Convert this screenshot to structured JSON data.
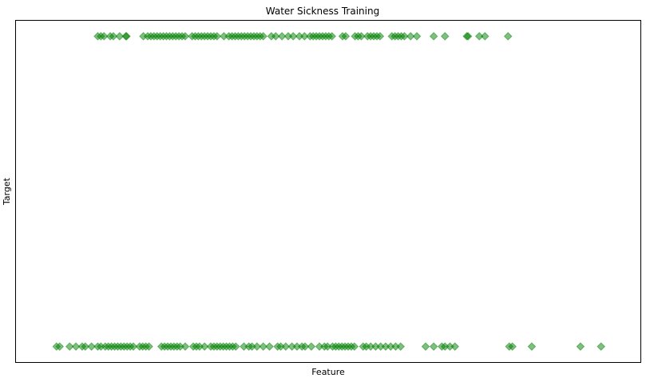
{
  "chart_data": {
    "type": "scatter",
    "title": "Water Sickness Training",
    "xlabel": "Feature",
    "ylabel": "Target",
    "xticks": [],
    "yticks": [],
    "xlim": [
      0,
      100
    ],
    "ylim": [
      -0.05,
      1.05
    ],
    "grid": false,
    "marker": "diamond",
    "color": "#008000",
    "alpha": 0.5,
    "series": [
      {
        "points": [
          {
            "x": 13.1,
            "y": 1
          },
          {
            "x": 13.6,
            "y": 1
          },
          {
            "x": 14.1,
            "y": 1
          },
          {
            "x": 15.1,
            "y": 1
          },
          {
            "x": 15.6,
            "y": 1
          },
          {
            "x": 16.6,
            "y": 1
          },
          {
            "x": 17.6,
            "y": 1
          },
          {
            "x": 17.7,
            "y": 1
          },
          {
            "x": 20.4,
            "y": 1
          },
          {
            "x": 21.1,
            "y": 1
          },
          {
            "x": 21.6,
            "y": 1
          },
          {
            "x": 22.1,
            "y": 1
          },
          {
            "x": 22.6,
            "y": 1
          },
          {
            "x": 23.1,
            "y": 1
          },
          {
            "x": 23.6,
            "y": 1
          },
          {
            "x": 24.1,
            "y": 1
          },
          {
            "x": 24.6,
            "y": 1
          },
          {
            "x": 25.1,
            "y": 1
          },
          {
            "x": 25.6,
            "y": 1
          },
          {
            "x": 26.1,
            "y": 1
          },
          {
            "x": 26.6,
            "y": 1
          },
          {
            "x": 27.1,
            "y": 1
          },
          {
            "x": 28.2,
            "y": 1
          },
          {
            "x": 28.7,
            "y": 1
          },
          {
            "x": 29.2,
            "y": 1
          },
          {
            "x": 29.7,
            "y": 1
          },
          {
            "x": 30.2,
            "y": 1
          },
          {
            "x": 30.7,
            "y": 1
          },
          {
            "x": 31.2,
            "y": 1
          },
          {
            "x": 31.7,
            "y": 1
          },
          {
            "x": 32.2,
            "y": 1
          },
          {
            "x": 33.3,
            "y": 1
          },
          {
            "x": 34.1,
            "y": 1
          },
          {
            "x": 34.6,
            "y": 1
          },
          {
            "x": 35.1,
            "y": 1
          },
          {
            "x": 35.6,
            "y": 1
          },
          {
            "x": 36.1,
            "y": 1
          },
          {
            "x": 36.6,
            "y": 1
          },
          {
            "x": 37.1,
            "y": 1
          },
          {
            "x": 37.6,
            "y": 1
          },
          {
            "x": 38.1,
            "y": 1
          },
          {
            "x": 38.6,
            "y": 1
          },
          {
            "x": 39.1,
            "y": 1
          },
          {
            "x": 39.6,
            "y": 1
          },
          {
            "x": 40.9,
            "y": 1
          },
          {
            "x": 41.6,
            "y": 1
          },
          {
            "x": 42.6,
            "y": 1
          },
          {
            "x": 43.6,
            "y": 1
          },
          {
            "x": 44.4,
            "y": 1
          },
          {
            "x": 45.4,
            "y": 1
          },
          {
            "x": 46.2,
            "y": 1
          },
          {
            "x": 47.1,
            "y": 1
          },
          {
            "x": 47.6,
            "y": 1
          },
          {
            "x": 48.1,
            "y": 1
          },
          {
            "x": 48.6,
            "y": 1
          },
          {
            "x": 49.1,
            "y": 1
          },
          {
            "x": 49.6,
            "y": 1
          },
          {
            "x": 50.1,
            "y": 1
          },
          {
            "x": 50.6,
            "y": 1
          },
          {
            "x": 52.3,
            "y": 1
          },
          {
            "x": 52.8,
            "y": 1
          },
          {
            "x": 54.3,
            "y": 1
          },
          {
            "x": 54.8,
            "y": 1
          },
          {
            "x": 55.3,
            "y": 1
          },
          {
            "x": 56.3,
            "y": 1
          },
          {
            "x": 56.8,
            "y": 1
          },
          {
            "x": 57.3,
            "y": 1
          },
          {
            "x": 57.8,
            "y": 1
          },
          {
            "x": 58.3,
            "y": 1
          },
          {
            "x": 60.2,
            "y": 1
          },
          {
            "x": 60.7,
            "y": 1
          },
          {
            "x": 61.2,
            "y": 1
          },
          {
            "x": 61.7,
            "y": 1
          },
          {
            "x": 62.2,
            "y": 1
          },
          {
            "x": 63.2,
            "y": 1
          },
          {
            "x": 64.2,
            "y": 1
          },
          {
            "x": 66.9,
            "y": 1
          },
          {
            "x": 68.7,
            "y": 1
          },
          {
            "x": 72.2,
            "y": 1
          },
          {
            "x": 72.4,
            "y": 1
          },
          {
            "x": 74.2,
            "y": 1
          },
          {
            "x": 75.1,
            "y": 1
          },
          {
            "x": 78.8,
            "y": 1
          },
          {
            "x": 6.5,
            "y": 0
          },
          {
            "x": 7.0,
            "y": 0
          },
          {
            "x": 8.6,
            "y": 0
          },
          {
            "x": 9.6,
            "y": 0
          },
          {
            "x": 10.6,
            "y": 0
          },
          {
            "x": 11.1,
            "y": 0
          },
          {
            "x": 12.1,
            "y": 0
          },
          {
            "x": 13.1,
            "y": 0
          },
          {
            "x": 13.6,
            "y": 0
          },
          {
            "x": 14.3,
            "y": 0
          },
          {
            "x": 14.8,
            "y": 0
          },
          {
            "x": 15.3,
            "y": 0
          },
          {
            "x": 15.8,
            "y": 0
          },
          {
            "x": 16.3,
            "y": 0
          },
          {
            "x": 16.8,
            "y": 0
          },
          {
            "x": 17.3,
            "y": 0
          },
          {
            "x": 17.8,
            "y": 0
          },
          {
            "x": 18.3,
            "y": 0
          },
          {
            "x": 18.8,
            "y": 0
          },
          {
            "x": 19.8,
            "y": 0
          },
          {
            "x": 20.3,
            "y": 0
          },
          {
            "x": 20.8,
            "y": 0
          },
          {
            "x": 21.3,
            "y": 0
          },
          {
            "x": 23.3,
            "y": 0
          },
          {
            "x": 23.8,
            "y": 0
          },
          {
            "x": 24.3,
            "y": 0
          },
          {
            "x": 24.8,
            "y": 0
          },
          {
            "x": 25.3,
            "y": 0
          },
          {
            "x": 25.8,
            "y": 0
          },
          {
            "x": 26.3,
            "y": 0
          },
          {
            "x": 27.1,
            "y": 0
          },
          {
            "x": 28.4,
            "y": 0
          },
          {
            "x": 28.9,
            "y": 0
          },
          {
            "x": 29.4,
            "y": 0
          },
          {
            "x": 30.2,
            "y": 0
          },
          {
            "x": 31.2,
            "y": 0
          },
          {
            "x": 31.7,
            "y": 0
          },
          {
            "x": 32.2,
            "y": 0
          },
          {
            "x": 32.7,
            "y": 0
          },
          {
            "x": 33.2,
            "y": 0
          },
          {
            "x": 33.7,
            "y": 0
          },
          {
            "x": 34.2,
            "y": 0
          },
          {
            "x": 34.7,
            "y": 0
          },
          {
            "x": 35.2,
            "y": 0
          },
          {
            "x": 36.5,
            "y": 0
          },
          {
            "x": 37.3,
            "y": 0
          },
          {
            "x": 37.8,
            "y": 0
          },
          {
            "x": 38.6,
            "y": 0
          },
          {
            "x": 39.6,
            "y": 0
          },
          {
            "x": 40.6,
            "y": 0
          },
          {
            "x": 41.9,
            "y": 0
          },
          {
            "x": 42.4,
            "y": 0
          },
          {
            "x": 43.2,
            "y": 0
          },
          {
            "x": 44.2,
            "y": 0
          },
          {
            "x": 45.0,
            "y": 0
          },
          {
            "x": 45.8,
            "y": 0
          },
          {
            "x": 46.3,
            "y": 0
          },
          {
            "x": 47.3,
            "y": 0
          },
          {
            "x": 48.6,
            "y": 0
          },
          {
            "x": 49.4,
            "y": 0
          },
          {
            "x": 49.9,
            "y": 0
          },
          {
            "x": 50.7,
            "y": 0
          },
          {
            "x": 51.2,
            "y": 0
          },
          {
            "x": 51.7,
            "y": 0
          },
          {
            "x": 52.2,
            "y": 0
          },
          {
            "x": 52.7,
            "y": 0
          },
          {
            "x": 53.2,
            "y": 0
          },
          {
            "x": 53.7,
            "y": 0
          },
          {
            "x": 54.2,
            "y": 0
          },
          {
            "x": 55.6,
            "y": 0
          },
          {
            "x": 56.1,
            "y": 0
          },
          {
            "x": 56.8,
            "y": 0
          },
          {
            "x": 57.6,
            "y": 0
          },
          {
            "x": 58.4,
            "y": 0
          },
          {
            "x": 59.2,
            "y": 0
          },
          {
            "x": 60.0,
            "y": 0
          },
          {
            "x": 60.8,
            "y": 0
          },
          {
            "x": 61.6,
            "y": 0
          },
          {
            "x": 65.6,
            "y": 0
          },
          {
            "x": 66.9,
            "y": 0
          },
          {
            "x": 68.2,
            "y": 0
          },
          {
            "x": 68.7,
            "y": 0
          },
          {
            "x": 69.5,
            "y": 0
          },
          {
            "x": 70.3,
            "y": 0
          },
          {
            "x": 79.0,
            "y": 0
          },
          {
            "x": 79.5,
            "y": 0
          },
          {
            "x": 82.6,
            "y": 0
          },
          {
            "x": 90.4,
            "y": 0
          },
          {
            "x": 93.7,
            "y": 0
          }
        ]
      }
    ]
  }
}
